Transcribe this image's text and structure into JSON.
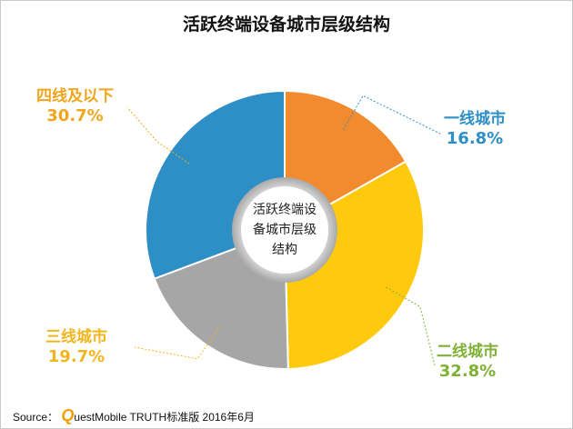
{
  "title": "活跃终端设备城市层级结构",
  "chart_data": {
    "type": "pie",
    "title": "活跃终端设备城市层级结构",
    "center_label": [
      "活跃终端设",
      "备城市层级",
      "结构"
    ],
    "slices": [
      {
        "name": "一线城市",
        "value": 16.8,
        "value_label": "16.8%",
        "color": "#F28A2E",
        "label_color": "#2E8FC7"
      },
      {
        "name": "二线城市",
        "value": 32.8,
        "value_label": "32.8%",
        "color": "#FFC90E",
        "label_color": "#7FB135"
      },
      {
        "name": "三线城市",
        "value": 19.7,
        "value_label": "19.7%",
        "color": "#A6A6A6",
        "label_color": "#F2B51C"
      },
      {
        "name": "四线及以下",
        "value": 30.7,
        "value_label": "30.7%",
        "color": "#2E8FC7",
        "label_color": "#F2A51C"
      }
    ]
  },
  "source": {
    "prefix": "Source：",
    "q": "Q",
    "text": "uestMobile TRUTH标准版 2016年6月"
  }
}
